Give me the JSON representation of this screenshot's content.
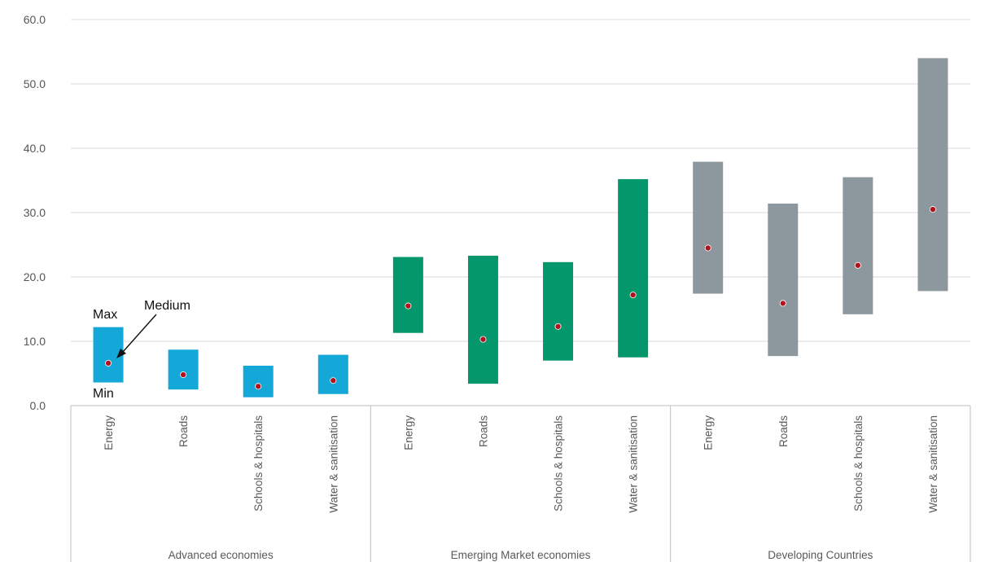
{
  "chart_data": {
    "type": "bar",
    "subtype": "floating-range",
    "title": "",
    "xlabel": "",
    "ylabel": "",
    "ylim": [
      0,
      60
    ],
    "yticks": [
      "0.0",
      "10.0",
      "20.0",
      "30.0",
      "40.0",
      "50.0",
      "60.0"
    ],
    "grid": true,
    "legend": "none",
    "groups": [
      {
        "name": "Advanced economies",
        "color": "#13a8d8",
        "items": [
          {
            "category": "Energy",
            "min": 3.6,
            "max": 12.2,
            "medium": 6.6
          },
          {
            "category": "Roads",
            "min": 2.5,
            "max": 8.7,
            "medium": 4.8
          },
          {
            "category": "Schools & hospitals",
            "min": 1.3,
            "max": 6.2,
            "medium": 3.0
          },
          {
            "category": "Water & sanitisation",
            "min": 1.8,
            "max": 7.9,
            "medium": 3.9
          }
        ]
      },
      {
        "name": "Emerging Market economies",
        "color": "#03976b",
        "items": [
          {
            "category": "Energy",
            "min": 11.3,
            "max": 23.1,
            "medium": 15.5
          },
          {
            "category": "Roads",
            "min": 3.4,
            "max": 23.3,
            "medium": 10.3
          },
          {
            "category": "Schools & hospitals",
            "min": 7.0,
            "max": 22.3,
            "medium": 12.3
          },
          {
            "category": "Water & sanitisation",
            "min": 7.5,
            "max": 35.2,
            "medium": 17.2
          }
        ]
      },
      {
        "name": "Developing Countries",
        "color": "#8c989d",
        "items": [
          {
            "category": "Energy",
            "min": 17.4,
            "max": 37.9,
            "medium": 24.5
          },
          {
            "category": "Roads",
            "min": 7.7,
            "max": 31.4,
            "medium": 15.9
          },
          {
            "category": "Schools & hospitals",
            "min": 14.2,
            "max": 35.5,
            "medium": 21.8
          },
          {
            "category": "Water & sanitisation",
            "min": 17.8,
            "max": 54.0,
            "medium": 30.5
          }
        ]
      }
    ],
    "marker_color": "#b3111d",
    "annotations": {
      "max": "Max",
      "min": "Min",
      "medium": "Medium"
    }
  }
}
